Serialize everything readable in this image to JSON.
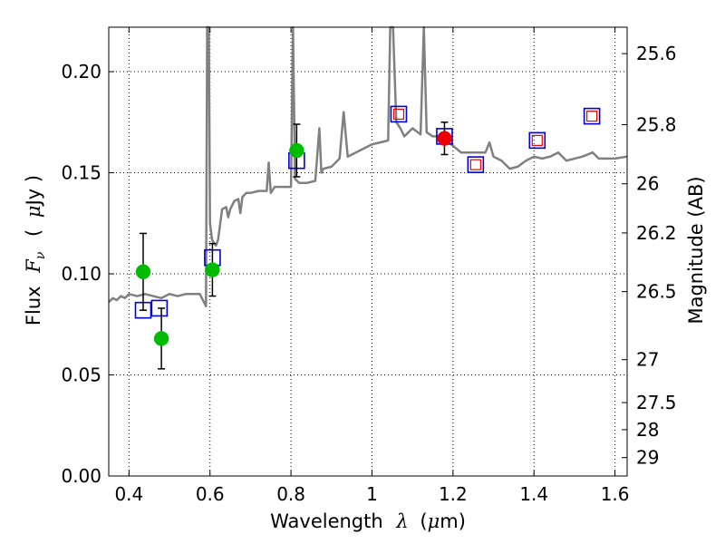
{
  "chart_data": {
    "type": "scatter",
    "title": "",
    "xlabel": "Wavelength",
    "xlabel_symbol": "λ",
    "xlabel_unit_open": "(",
    "xlabel_unit_mu": "μ",
    "xlabel_unit_rest": "m)",
    "ylabel": "Flux",
    "ylabel_symbol": "F",
    "ylabel_symbol_sub": "ν",
    "ylabel_unit_open": "(",
    "ylabel_unit_mu": "μ",
    "ylabel_unit_rest": "Jy )",
    "y2label": "Magnitude (AB)",
    "xlim": [
      0.35,
      1.63
    ],
    "ylim": [
      0.0,
      0.222
    ],
    "grid": true,
    "x_ticks": [
      0.4,
      0.6,
      0.8,
      1.0,
      1.2,
      1.4,
      1.6
    ],
    "x_tick_labels": [
      "0.4",
      "0.6",
      "0.8",
      "1",
      "1.2",
      "1.4",
      "1.6"
    ],
    "y_ticks": [
      0.0,
      0.05,
      0.1,
      0.15,
      0.2
    ],
    "y_tick_labels": [
      "0.00",
      "0.05",
      "0.10",
      "0.15",
      "0.20"
    ],
    "mag_ticks": [
      25.6,
      25.8,
      26,
      26.2,
      26.5,
      27,
      27.5,
      28,
      29
    ],
    "mag_tick_labels": [
      "25.6",
      "25.8",
      "26",
      "26.2",
      "26.5",
      "27",
      "27.5",
      "28",
      "29"
    ],
    "observed_photometry": {
      "name": "observed (green)",
      "color": "#00bb00",
      "points": [
        {
          "x": 0.435,
          "y": 0.101,
          "err": 0.019
        },
        {
          "x": 0.48,
          "y": 0.068,
          "err": 0.015
        },
        {
          "x": 0.606,
          "y": 0.102,
          "err": 0.013
        },
        {
          "x": 0.814,
          "y": 0.161,
          "err": 0.013
        }
      ]
    },
    "highlight_photometry": {
      "name": "observed (red)",
      "color": "#ee0000",
      "points": [
        {
          "x": 1.179,
          "y": 0.167,
          "err": 0.008
        }
      ]
    },
    "model_photometry": {
      "name": "model (blue squares)",
      "color": "#0000dd",
      "points": [
        {
          "x": 0.435,
          "y": 0.082
        },
        {
          "x": 0.475,
          "y": 0.083
        },
        {
          "x": 0.606,
          "y": 0.108
        },
        {
          "x": 0.814,
          "y": 0.156
        },
        {
          "x": 1.066,
          "y": 0.179
        },
        {
          "x": 1.179,
          "y": 0.168
        },
        {
          "x": 1.256,
          "y": 0.154
        },
        {
          "x": 1.408,
          "y": 0.166
        },
        {
          "x": 1.543,
          "y": 0.178
        }
      ]
    },
    "upper_limit_markers": {
      "name": "small red squares",
      "color": "#ee0000",
      "points": [
        {
          "x": 1.066,
          "y": 0.179
        },
        {
          "x": 1.256,
          "y": 0.154
        },
        {
          "x": 1.408,
          "y": 0.166
        },
        {
          "x": 1.543,
          "y": 0.178
        }
      ]
    },
    "template_spectrum": {
      "name": "template spectrum",
      "color": "#808080",
      "points": [
        [
          0.35,
          0.086
        ],
        [
          0.36,
          0.088
        ],
        [
          0.37,
          0.087
        ],
        [
          0.38,
          0.089
        ],
        [
          0.39,
          0.088
        ],
        [
          0.4,
          0.09
        ],
        [
          0.42,
          0.089
        ],
        [
          0.44,
          0.09
        ],
        [
          0.46,
          0.089
        ],
        [
          0.48,
          0.088
        ],
        [
          0.5,
          0.09
        ],
        [
          0.52,
          0.089
        ],
        [
          0.54,
          0.09
        ],
        [
          0.56,
          0.09
        ],
        [
          0.575,
          0.09
        ],
        [
          0.585,
          0.086
        ],
        [
          0.59,
          0.084
        ],
        [
          0.593,
          0.222
        ],
        [
          0.597,
          0.222
        ],
        [
          0.6,
          0.125
        ],
        [
          0.605,
          0.117
        ],
        [
          0.61,
          0.115
        ],
        [
          0.615,
          0.114
        ],
        [
          0.62,
          0.117
        ],
        [
          0.63,
          0.132
        ],
        [
          0.64,
          0.133
        ],
        [
          0.645,
          0.128
        ],
        [
          0.65,
          0.132
        ],
        [
          0.66,
          0.136
        ],
        [
          0.67,
          0.137
        ],
        [
          0.675,
          0.13
        ],
        [
          0.68,
          0.138
        ],
        [
          0.69,
          0.14
        ],
        [
          0.7,
          0.14
        ],
        [
          0.72,
          0.141
        ],
        [
          0.74,
          0.141
        ],
        [
          0.745,
          0.155
        ],
        [
          0.75,
          0.14
        ],
        [
          0.76,
          0.143
        ],
        [
          0.78,
          0.143
        ],
        [
          0.8,
          0.143
        ],
        [
          0.805,
          0.222
        ],
        [
          0.81,
          0.147
        ],
        [
          0.82,
          0.145
        ],
        [
          0.84,
          0.145
        ],
        [
          0.86,
          0.146
        ],
        [
          0.87,
          0.172
        ],
        [
          0.875,
          0.15
        ],
        [
          0.88,
          0.152
        ],
        [
          0.9,
          0.153
        ],
        [
          0.92,
          0.157
        ],
        [
          0.93,
          0.18
        ],
        [
          0.94,
          0.158
        ],
        [
          0.96,
          0.16
        ],
        [
          0.98,
          0.162
        ],
        [
          1.0,
          0.164
        ],
        [
          1.02,
          0.165
        ],
        [
          1.04,
          0.166
        ],
        [
          1.045,
          0.222
        ],
        [
          1.052,
          0.222
        ],
        [
          1.06,
          0.175
        ],
        [
          1.07,
          0.172
        ],
        [
          1.08,
          0.168
        ],
        [
          1.09,
          0.17
        ],
        [
          1.1,
          0.172
        ],
        [
          1.12,
          0.169
        ],
        [
          1.128,
          0.222
        ],
        [
          1.135,
          0.17
        ],
        [
          1.15,
          0.168
        ],
        [
          1.17,
          0.168
        ],
        [
          1.19,
          0.165
        ],
        [
          1.22,
          0.16
        ],
        [
          1.25,
          0.16
        ],
        [
          1.28,
          0.16
        ],
        [
          1.29,
          0.165
        ],
        [
          1.3,
          0.158
        ],
        [
          1.32,
          0.156
        ],
        [
          1.34,
          0.152
        ],
        [
          1.36,
          0.153
        ],
        [
          1.38,
          0.156
        ],
        [
          1.4,
          0.158
        ],
        [
          1.42,
          0.157
        ],
        [
          1.44,
          0.158
        ],
        [
          1.46,
          0.16
        ],
        [
          1.48,
          0.156
        ],
        [
          1.5,
          0.157
        ],
        [
          1.52,
          0.158
        ],
        [
          1.545,
          0.16
        ],
        [
          1.56,
          0.157
        ],
        [
          1.58,
          0.157
        ],
        [
          1.6,
          0.157
        ],
        [
          1.63,
          0.158
        ]
      ]
    }
  }
}
